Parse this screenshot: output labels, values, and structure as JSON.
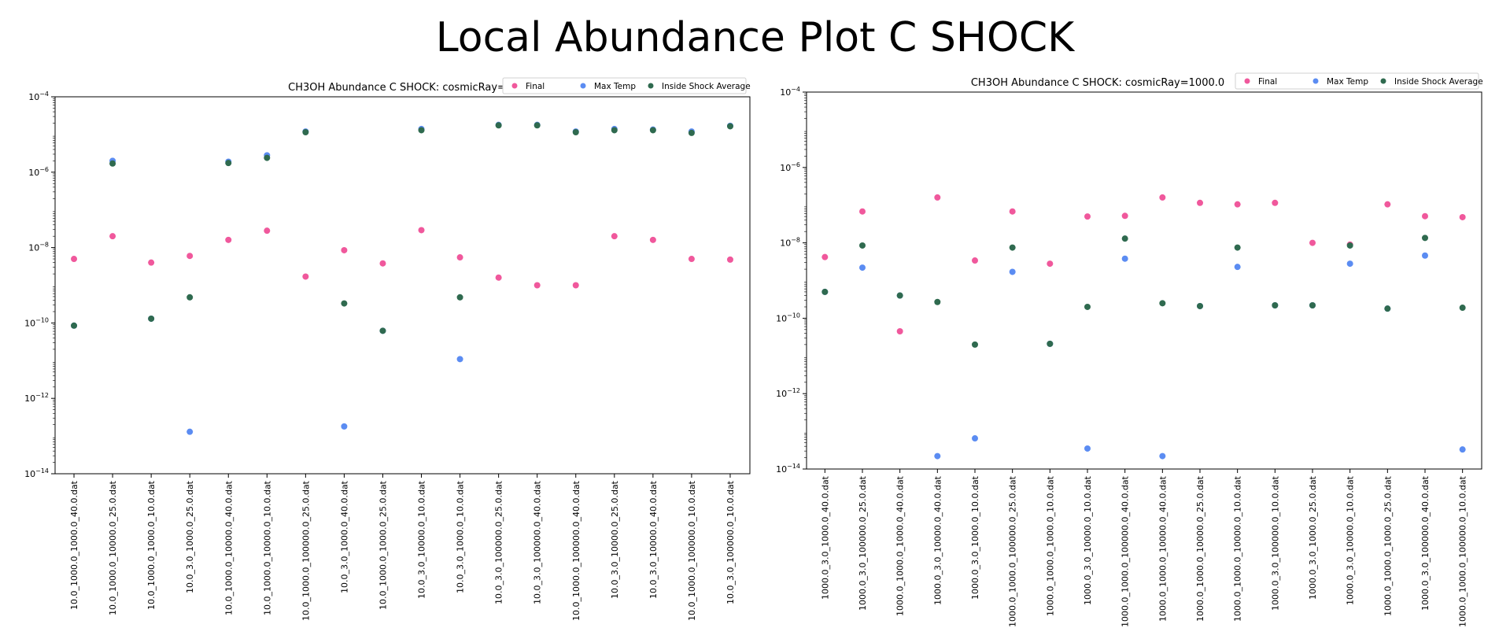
{
  "page": {
    "title": "Local Abundance Plot C SHOCK"
  },
  "colors": {
    "Final": "#f0589c",
    "Max Temp": "#5b8cf2",
    "Inside Shock Average": "#2f6a4f"
  },
  "legend": [
    "Final",
    "Max Temp",
    "Inside Shock Average"
  ],
  "chart_data": [
    {
      "type": "scatter",
      "title": "CH3OH Abundance C SHOCK: cosmicRay=10.0",
      "yscale": "log",
      "ylim": [
        1e-14,
        0.0001
      ],
      "yticks": [
        {
          "exp": -14,
          "label": "10^-14"
        },
        {
          "exp": -12,
          "label": "10^-12"
        },
        {
          "exp": -10,
          "label": "10^-10"
        },
        {
          "exp": -8,
          "label": "10^-8"
        },
        {
          "exp": -6,
          "label": "10^-6"
        },
        {
          "exp": -4,
          "label": "10^-4"
        }
      ],
      "categories": [
        "10.0_1000.0_1000.0_40.0.dat",
        "10.0_1000.0_10000.0_25.0.dat",
        "10.0_1000.0_1000.0_10.0.dat",
        "10.0_3.0_1000.0_25.0.dat",
        "10.0_1000.0_10000.0_40.0.dat",
        "10.0_1000.0_10000.0_10.0.dat",
        "10.0_1000.0_100000.0_25.0.dat",
        "10.0_3.0_1000.0_40.0.dat",
        "10.0_1000.0_1000.0_25.0.dat",
        "10.0_3.0_10000.0_10.0.dat",
        "10.0_3.0_1000.0_10.0.dat",
        "10.0_3.0_100000.0_25.0.dat",
        "10.0_3.0_100000.0_40.0.dat",
        "10.0_1000.0_100000.0_40.0.dat",
        "10.0_3.0_10000.0_25.0.dat",
        "10.0_3.0_10000.0_40.0.dat",
        "10.0_1000.0_100000.0_10.0.dat",
        "10.0_3.0_100000.0_10.0.dat"
      ],
      "series": [
        {
          "name": "Final",
          "values": [
            5e-09,
            2e-08,
            4e-09,
            6e-09,
            1.6e-08,
            2.8e-08,
            1.7e-09,
            8.5e-09,
            3.8e-09,
            2.9e-08,
            5.5e-09,
            1.6e-09,
            1e-09,
            1e-09,
            2e-08,
            1.6e-08,
            5e-09,
            4.8e-09
          ]
        },
        {
          "name": "Max Temp",
          "values": [
            8.5e-11,
            2e-06,
            1.3e-10,
            1.3e-13,
            1.9e-06,
            2.8e-06,
            1.2e-05,
            1.8e-13,
            6.2e-11,
            1.4e-05,
            1.1e-11,
            1.8e-05,
            1.8e-05,
            1.2e-05,
            1.4e-05,
            1.35e-05,
            1.2e-05,
            1.7e-05
          ]
        },
        {
          "name": "Inside Shock Average",
          "values": [
            8.5e-11,
            1.7e-06,
            1.3e-10,
            4.8e-10,
            1.75e-06,
            2.4e-06,
            1.15e-05,
            3.3e-10,
            6.2e-11,
            1.3e-05,
            4.8e-10,
            1.75e-05,
            1.75e-05,
            1.15e-05,
            1.3e-05,
            1.3e-05,
            1.1e-05,
            1.65e-05
          ]
        }
      ]
    },
    {
      "type": "scatter",
      "title": "CH3OH Abundance C SHOCK: cosmicRay=1000.0",
      "yscale": "log",
      "ylim": [
        1e-14,
        0.0001
      ],
      "yticks": [
        {
          "exp": -14,
          "label": "10^-14"
        },
        {
          "exp": -12,
          "label": "10^-12"
        },
        {
          "exp": -10,
          "label": "10^-10"
        },
        {
          "exp": -8,
          "label": "10^-8"
        },
        {
          "exp": -6,
          "label": "10^-6"
        },
        {
          "exp": -4,
          "label": "10^-4"
        }
      ],
      "categories": [
        "1000.0_3.0_1000.0_40.0.dat",
        "1000.0_3.0_100000.0_25.0.dat",
        "1000.0_1000.0_1000.0_40.0.dat",
        "1000.0_3.0_10000.0_40.0.dat",
        "1000.0_3.0_1000.0_10.0.dat",
        "1000.0_1000.0_100000.0_25.0.dat",
        "1000.0_1000.0_1000.0_10.0.dat",
        "1000.0_3.0_10000.0_10.0.dat",
        "1000.0_1000.0_100000.0_40.0.dat",
        "1000.0_1000.0_10000.0_40.0.dat",
        "1000.0_1000.0_10000.0_25.0.dat",
        "1000.0_1000.0_10000.0_10.0.dat",
        "1000.0_3.0_100000.0_10.0.dat",
        "1000.0_3.0_1000.0_25.0.dat",
        "1000.0_3.0_10000.0_10.0.dat",
        "1000.0_1000.0_1000.0_25.0.dat",
        "1000.0_3.0_100000.0_40.0.dat",
        "1000.0_1000.0_100000.0_10.0.dat"
      ],
      "series": [
        {
          "name": "Final",
          "values": [
            4.2e-09,
            6.8e-08,
            4.5e-11,
            1.6e-07,
            3.4e-09,
            6.8e-08,
            2.8e-09,
            5e-08,
            5.2e-08,
            1.6e-07,
            1.15e-07,
            1.05e-07,
            1.15e-07,
            1e-08,
            9e-09,
            1.05e-07,
            5.1e-08,
            4.8e-08
          ]
        },
        {
          "name": "Max Temp",
          "values": [
            5e-10,
            2.2e-09,
            4e-10,
            2.2e-14,
            6.5e-14,
            1.7e-09,
            2.1e-11,
            3.5e-14,
            3.8e-09,
            2.2e-14,
            2.1e-10,
            2.3e-09,
            2.2e-10,
            2.2e-10,
            2.8e-09,
            1.8e-10,
            4.6e-09,
            3.3e-14
          ]
        },
        {
          "name": "Inside Shock Average",
          "values": [
            5e-10,
            8.5e-09,
            4e-10,
            2.7e-10,
            2e-11,
            7.5e-09,
            2.1e-11,
            2e-10,
            1.3e-08,
            2.5e-10,
            2.1e-10,
            7.5e-09,
            2.2e-10,
            2.2e-10,
            8.5e-09,
            1.8e-10,
            1.35e-08,
            1.9e-10
          ]
        }
      ]
    }
  ]
}
